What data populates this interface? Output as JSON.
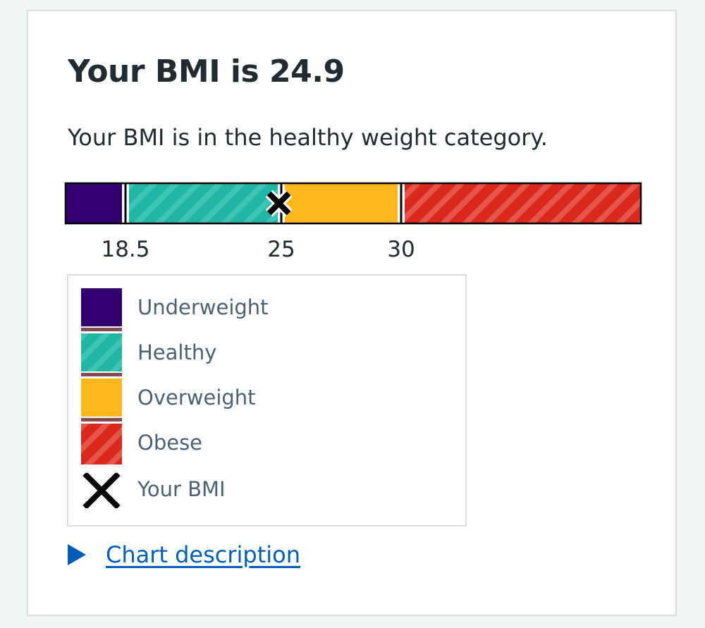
{
  "title": "Your BMI is 24.9",
  "summary": "Your BMI is in the healthy weight category.",
  "chart_data": {
    "type": "bar",
    "orientation": "horizontal-segmented",
    "bmi_value": 24.9,
    "range": [
      16,
      40
    ],
    "thresholds": [
      18.5,
      25,
      30
    ],
    "tick_labels": [
      "18.5",
      "25",
      "30"
    ],
    "categories": [
      {
        "name": "Underweight",
        "from": 16,
        "to": 18.5,
        "color": "#330072",
        "pattern": "solid"
      },
      {
        "name": "Healthy",
        "from": 18.5,
        "to": 25,
        "color": "#1fb6a4",
        "pattern": "stripes"
      },
      {
        "name": "Overweight",
        "from": 25,
        "to": 30,
        "color": "#ffb81c",
        "pattern": "solid"
      },
      {
        "name": "Obese",
        "from": 30,
        "to": 40,
        "color": "#da291c",
        "pattern": "stripes"
      }
    ]
  },
  "legend": {
    "items": [
      "Underweight",
      "Healthy",
      "Overweight",
      "Obese"
    ],
    "marker_label": "Your BMI"
  },
  "details": {
    "summary": "Chart description"
  },
  "colors": {
    "underweight": "#330072",
    "healthy": "#1fb6a4",
    "overweight": "#ffb81c",
    "obese": "#da291c",
    "link": "#005eb8"
  }
}
